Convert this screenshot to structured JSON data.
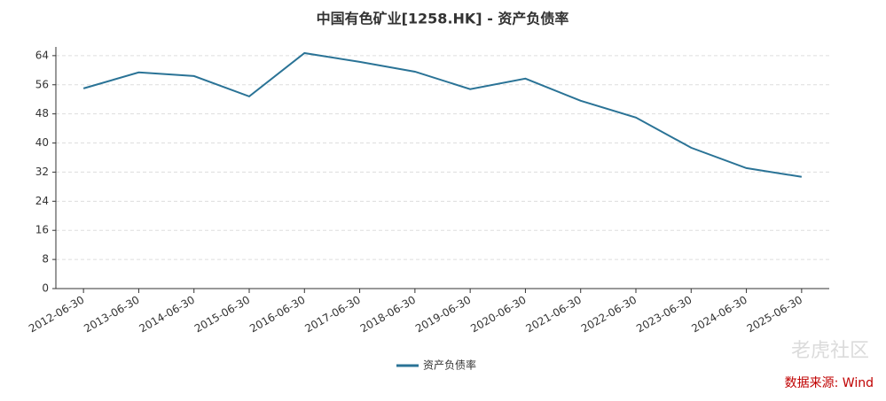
{
  "chart_data": {
    "type": "line",
    "title": "中国有色矿业[1258.HK] - 资产负债率",
    "categories": [
      "2012-06-30",
      "2013-06-30",
      "2014-06-30",
      "2015-06-30",
      "2016-06-30",
      "2017-06-30",
      "2018-06-30",
      "2019-06-30",
      "2020-06-30",
      "2021-06-30",
      "2022-06-30",
      "2023-06-30",
      "2024-06-30",
      "2025-06-30"
    ],
    "series": [
      {
        "name": "资产负债率",
        "color": "#2a7396",
        "values": [
          55.0,
          59.4,
          58.4,
          52.8,
          64.7,
          62.3,
          59.6,
          54.8,
          57.7,
          51.6,
          47.0,
          38.7,
          33.1,
          30.7
        ]
      }
    ],
    "ylim": [
      0,
      66.4
    ],
    "yticks": [
      0,
      8,
      16,
      24,
      32,
      40,
      48,
      56,
      64
    ],
    "grid": true,
    "legend": "bottom",
    "source": "数据来源: Wind",
    "watermark": "老虎社区"
  }
}
